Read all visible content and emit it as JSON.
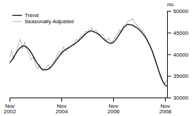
{
  "chart_data": {
    "type": "line",
    "y_label": "no.",
    "categories": [
      "Nov\n2002",
      null,
      null,
      null,
      null,
      null,
      null,
      null,
      null,
      null,
      null,
      null,
      null,
      null,
      null,
      null,
      null,
      null,
      null,
      null,
      null,
      null,
      null,
      null,
      "Nov\n2004",
      null,
      null,
      null,
      null,
      null,
      null,
      null,
      null,
      null,
      null,
      null,
      null,
      null,
      null,
      null,
      null,
      null,
      null,
      null,
      null,
      null,
      null,
      null,
      "Nov\n2006",
      null,
      null,
      null,
      null,
      null,
      null,
      null,
      null,
      null,
      null,
      null,
      null,
      null,
      null,
      null,
      null,
      null,
      null,
      null,
      null,
      null,
      null,
      null,
      "Nov\n2008",
      null
    ],
    "series": [
      {
        "name": "Trend",
        "color": "#000000",
        "values": [
          38000,
          38600,
          39400,
          40200,
          41000,
          41500,
          41900,
          41900,
          41600,
          41100,
          40400,
          39500,
          38600,
          37800,
          37100,
          36600,
          36400,
          36400,
          36600,
          37000,
          37500,
          38200,
          38900,
          39600,
          40200,
          40700,
          41100,
          41400,
          41700,
          42000,
          42300,
          42700,
          43100,
          43600,
          44100,
          44600,
          45000,
          45300,
          45400,
          45200,
          45000,
          44700,
          44300,
          43800,
          43300,
          42900,
          42600,
          42500,
          42700,
          43200,
          43900,
          44700,
          45500,
          46200,
          46700,
          46900,
          46800,
          46700,
          46400,
          46100,
          45700,
          45200,
          44600,
          43900,
          43000,
          42000,
          40900,
          39500,
          38000,
          36400,
          35000,
          33700,
          32900,
          32600
        ]
      },
      {
        "name": "Seasonally Adjusted",
        "color": "#bbbbbb",
        "values": [
          39200,
          40800,
          38800,
          40500,
          42000,
          43500,
          41200,
          42800,
          41200,
          40200,
          38700,
          39300,
          37600,
          36600,
          37600,
          36100,
          36300,
          36900,
          37600,
          36600,
          38000,
          38700,
          39700,
          40700,
          40200,
          41700,
          40700,
          41200,
          41700,
          42200,
          42700,
          43400,
          43200,
          44200,
          43700,
          45200,
          45200,
          45700,
          46200,
          45000,
          45700,
          44700,
          44200,
          44700,
          43700,
          43200,
          43700,
          42700,
          43200,
          44000,
          44700,
          45700,
          45200,
          46700,
          46700,
          47700,
          47800,
          48200,
          47200,
          46700,
          46200,
          45700,
          45200,
          44200,
          43200,
          42200,
          40700,
          39200,
          37700,
          36200,
          34700,
          33700,
          33200,
          34200
        ]
      }
    ],
    "ylim": [
      30000,
      50000
    ],
    "yticks": [
      30000,
      35000,
      40000,
      45000,
      50000
    ],
    "grid": false,
    "legend": "upper left"
  }
}
